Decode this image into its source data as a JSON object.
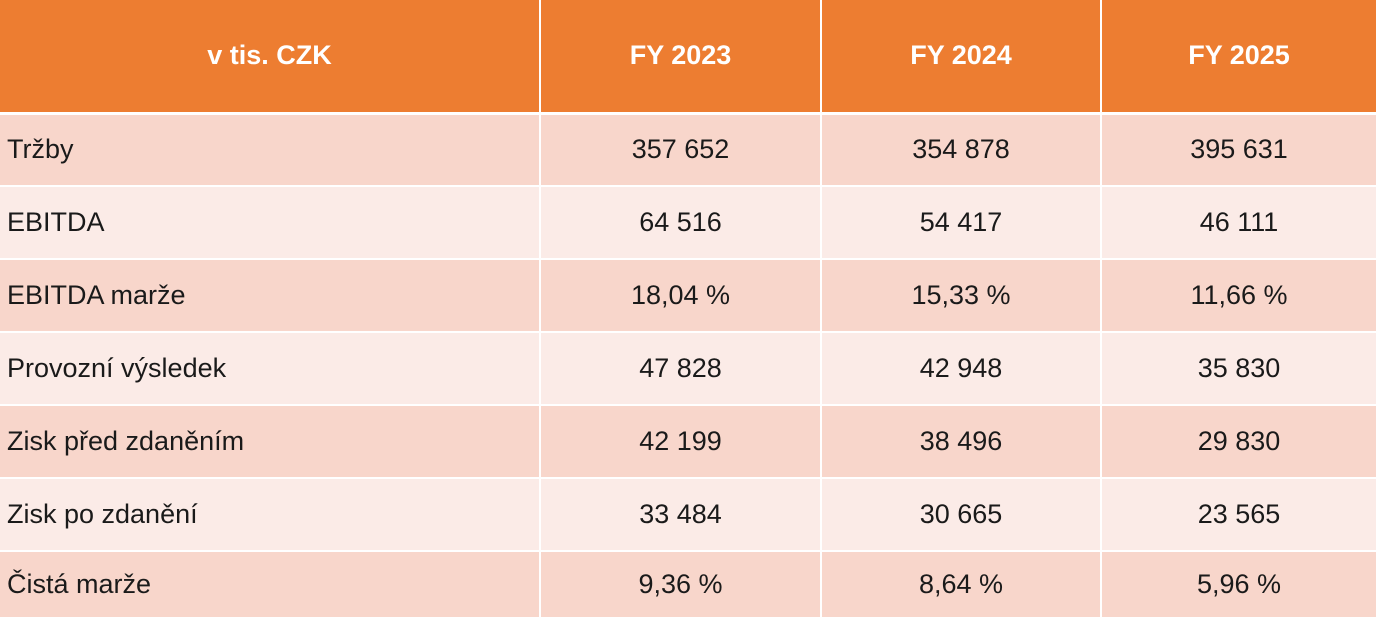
{
  "table": {
    "header": [
      "v tis. CZK",
      "FY 2023",
      "FY 2024",
      "FY 2025"
    ],
    "rows": [
      {
        "label": "Tržby",
        "values": [
          "357 652",
          "354 878",
          "395 631"
        ]
      },
      {
        "label": "EBITDA",
        "values": [
          "64 516",
          "54 417",
          "46 111"
        ]
      },
      {
        "label": "EBITDA marže",
        "values": [
          "18,04 %",
          "15,33 %",
          "11,66 %"
        ]
      },
      {
        "label": "Provozní výsledek",
        "values": [
          "47 828",
          "42 948",
          "35 830"
        ]
      },
      {
        "label": "Zisk před zdaněním",
        "values": [
          "42 199",
          "38 496",
          "29 830"
        ]
      },
      {
        "label": "Zisk po zdanění",
        "values": [
          "33 484",
          "30 665",
          "23 565"
        ]
      },
      {
        "label": "Čistá marže",
        "values": [
          "9,36 %",
          "8,64 %",
          "5,96 %"
        ]
      }
    ]
  },
  "colors": {
    "header_bg": "#ed7d31",
    "row_odd_bg": "#f8d6cb",
    "row_even_bg": "#fbebe7",
    "header_text": "#ffffff",
    "body_text": "#1a1a1a"
  }
}
